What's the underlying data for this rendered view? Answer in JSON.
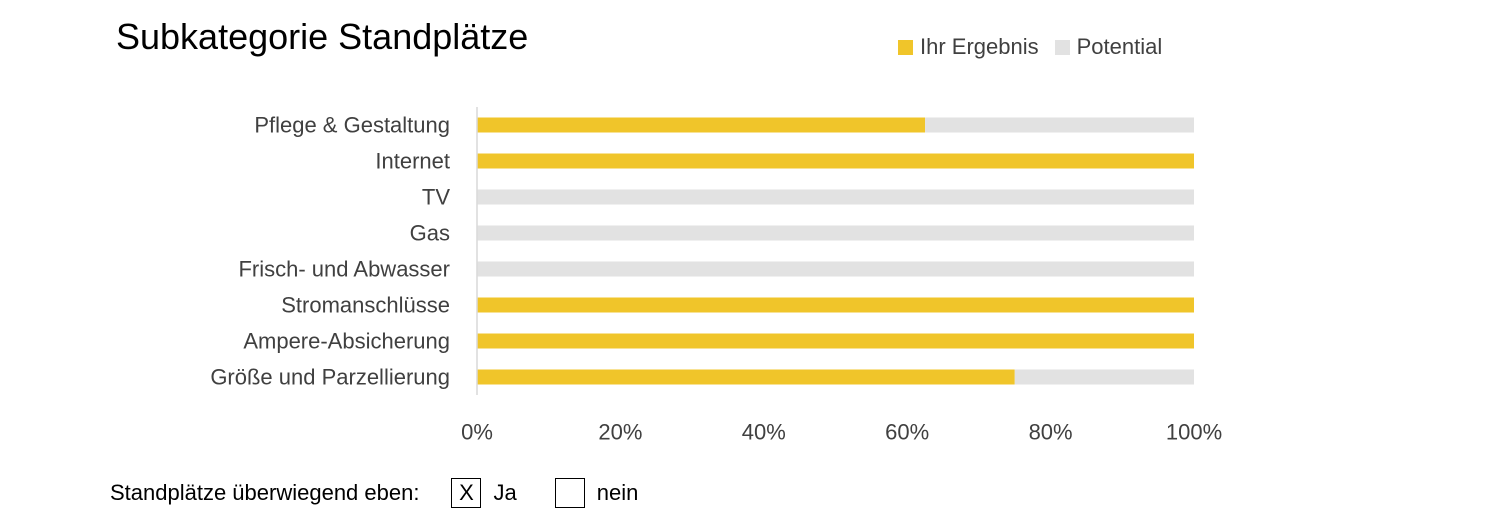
{
  "chart_data": {
    "type": "bar",
    "orientation": "horizontal",
    "stacked": true,
    "title": "Subkategorie Standplätze",
    "categories": [
      "Pflege & Gestaltung",
      "Internet",
      "TV",
      "Gas",
      "Frisch- und Abwasser",
      "Stromanschlüsse",
      "Ampere-Absicherung",
      "Größe und Parzellierung"
    ],
    "series": [
      {
        "name": "Ihr Ergebnis",
        "color": "#F0C52A",
        "values": [
          62.5,
          100,
          0,
          0,
          0,
          100,
          100,
          75
        ]
      },
      {
        "name": "Potential",
        "color": "#E2E2E2",
        "values": [
          37.5,
          0,
          100,
          100,
          100,
          0,
          0,
          25
        ]
      }
    ],
    "xlim": [
      0,
      100
    ],
    "xticks": [
      "0%",
      "20%",
      "40%",
      "60%",
      "80%",
      "100%"
    ],
    "xlabel": "",
    "ylabel": "",
    "grid": false,
    "legend_position": "top-right"
  },
  "footer": {
    "label": "Standplätze überwiegend eben:",
    "options": [
      {
        "mark": "X",
        "label": "Ja"
      },
      {
        "mark": "",
        "label": "nein"
      }
    ]
  }
}
